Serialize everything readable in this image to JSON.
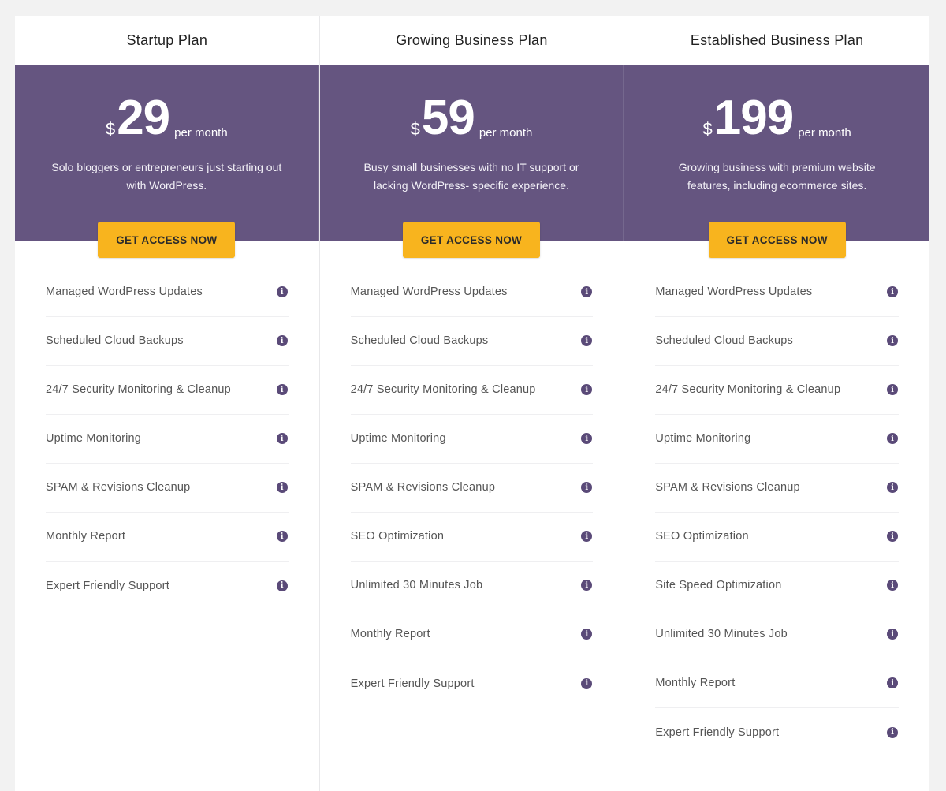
{
  "colors": {
    "hero": "#655580",
    "button": "#f8b41e",
    "info_icon": "#5a4a78",
    "background": "#f2f2f2"
  },
  "plans": [
    {
      "name": "Startup Plan",
      "currency": "$",
      "price": "29",
      "period": "per month",
      "description": "Solo bloggers or entrepreneurs just starting out with WordPress.",
      "cta": "GET ACCESS NOW",
      "features": [
        "Managed WordPress Updates",
        "Scheduled Cloud Backups",
        "24/7 Security Monitoring & Cleanup",
        "Uptime Monitoring",
        "SPAM & Revisions Cleanup",
        "Monthly Report",
        "Expert Friendly Support"
      ]
    },
    {
      "name": "Growing Business Plan",
      "currency": "$",
      "price": "59",
      "period": "per month",
      "description": "Busy small businesses with no IT support or lacking WordPress- specific experience.",
      "cta": "GET ACCESS NOW",
      "features": [
        "Managed WordPress Updates",
        "Scheduled Cloud Backups",
        "24/7 Security Monitoring & Cleanup",
        "Uptime Monitoring",
        "SPAM & Revisions Cleanup",
        "SEO Optimization",
        "Unlimited 30 Minutes Job",
        "Monthly Report",
        "Expert Friendly Support"
      ]
    },
    {
      "name": "Established Business Plan",
      "currency": "$",
      "price": "199",
      "period": "per month",
      "description": "Growing business with premium website features, including ecommerce sites.",
      "cta": "GET ACCESS NOW",
      "features": [
        "Managed WordPress Updates",
        "Scheduled Cloud Backups",
        "24/7 Security Monitoring & Cleanup",
        "Uptime Monitoring",
        "SPAM & Revisions Cleanup",
        "SEO Optimization",
        "Site Speed Optimization",
        "Unlimited 30 Minutes Job",
        "Monthly Report",
        "Expert Friendly Support"
      ]
    }
  ],
  "info_icon": "info-circle-icon",
  "info_glyph": "i"
}
